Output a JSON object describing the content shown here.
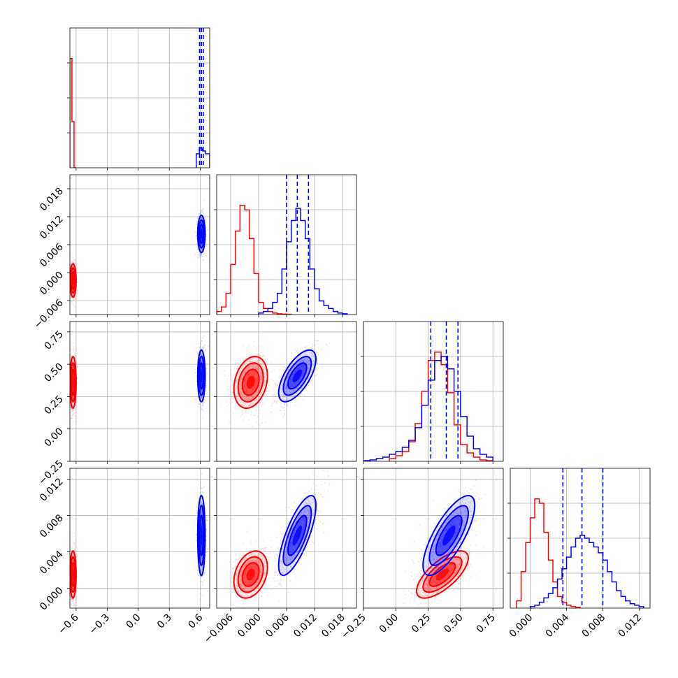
{
  "chart_data": {
    "type": "corner",
    "colors": {
      "series_a": "#ff0000",
      "series_b": "#0000ff"
    },
    "grid": true,
    "quantile_line_style": "dashed",
    "params": [
      {
        "range": [
          -0.66,
          0.69
        ],
        "ticks": [
          -0.6,
          -0.3,
          0.0,
          0.3,
          0.6
        ],
        "tick_labels": [
          "−0.6",
          "−0.3",
          "0.0",
          "0.3",
          "0.6"
        ]
      },
      {
        "range": [
          -0.009,
          0.021
        ],
        "ticks": [
          -0.006,
          0.0,
          0.006,
          0.012,
          0.018
        ],
        "tick_labels": [
          "−0.006",
          "0.000",
          "0.006",
          "0.012",
          "0.018"
        ]
      },
      {
        "range": [
          -0.25,
          0.83
        ],
        "ticks": [
          -0.25,
          0.0,
          0.25,
          0.5,
          0.75
        ],
        "tick_labels": [
          "−0.25",
          "0.00",
          "0.25",
          "0.50",
          "0.75"
        ]
      },
      {
        "range": [
          -0.0022,
          0.0132
        ],
        "ticks": [
          0.0,
          0.004,
          0.008,
          0.012
        ],
        "tick_labels": [
          "0.000",
          "0.004",
          "0.008",
          "0.012"
        ]
      }
    ],
    "series": [
      {
        "color": "#ff0000",
        "mean": [
          -0.63,
          -0.0017,
          0.36,
          0.0015
        ],
        "std": [
          0.015,
          0.0018,
          0.1,
          0.0013
        ],
        "corr": [
          [
            1,
            0,
            0,
            0
          ],
          [
            0,
            1,
            0.25,
            0.3
          ],
          [
            0,
            0.25,
            1,
            0.7
          ],
          [
            0,
            0.3,
            0.7,
            1
          ]
        ],
        "histograms": [
          {
            "bin_edges": [
              -0.66,
              -0.64,
              -0.62,
              -0.6
            ],
            "counts": [
              0.78,
              0.33,
              0
            ]
          },
          {
            "bin_edges": [
              -0.009,
              -0.008,
              -0.007,
              -0.006,
              -0.005,
              -0.004,
              -0.003,
              -0.002,
              -0.001,
              0.0,
              0.001,
              0.002,
              0.003,
              0.004,
              0.005,
              0.006,
              0.007
            ],
            "counts": [
              0.02,
              0.05,
              0.14,
              0.33,
              0.55,
              0.72,
              0.69,
              0.5,
              0.27,
              0.08,
              0.04,
              0.02,
              0.01,
              0.005,
              0.003,
              0.002
            ]
          },
          {
            "bin_edges": [
              -0.05,
              0.0,
              0.05,
              0.1,
              0.15,
              0.2,
              0.25,
              0.3,
              0.35,
              0.4,
              0.45,
              0.5,
              0.55,
              0.6,
              0.65,
              0.7,
              0.75
            ],
            "counts": [
              0.02,
              0.04,
              0.07,
              0.14,
              0.27,
              0.5,
              0.72,
              0.78,
              0.69,
              0.49,
              0.26,
              0.12,
              0.06,
              0.03,
              0.01,
              0.005
            ]
          },
          {
            "bin_edges": [
              -0.0015,
              -0.001,
              -0.0005,
              0.0,
              0.0005,
              0.001,
              0.0015,
              0.002,
              0.0025,
              0.003,
              0.0035,
              0.004,
              0.0045,
              0.005,
              0.0055
            ],
            "counts": [
              0.05,
              0.25,
              0.45,
              0.62,
              0.75,
              0.72,
              0.52,
              0.33,
              0.18,
              0.08,
              0.04,
              0.02,
              0.01,
              0.005
            ]
          }
        ]
      },
      {
        "color": "#0000ff",
        "mean": [
          0.61,
          0.0083,
          0.41,
          0.0058
        ],
        "std": [
          0.018,
          0.002,
          0.1,
          0.0022
        ],
        "corr": [
          [
            1,
            0,
            0,
            0
          ],
          [
            0,
            1,
            0.65,
            0.75
          ],
          [
            0,
            0.65,
            1,
            0.75
          ],
          [
            0,
            0.75,
            0.75,
            1
          ]
        ],
        "quantiles": [
          [
            0.592,
            0.61,
            0.628
          ],
          [
            0.006,
            0.0083,
            0.0107
          ],
          [
            0.27,
            0.39,
            0.48
          ],
          [
            0.0036,
            0.0057,
            0.008
          ]
        ],
        "histograms": [
          {
            "bin_edges": [
              0.56,
              0.59,
              0.62,
              0.65,
              0.69
            ],
            "counts": [
              0.1,
              0.14,
              0.12,
              0.1
            ]
          },
          {
            "bin_edges": [
              0.0,
              0.001,
              0.002,
              0.003,
              0.004,
              0.005,
              0.006,
              0.007,
              0.008,
              0.009,
              0.01,
              0.011,
              0.012,
              0.013,
              0.014,
              0.015,
              0.016,
              0.017,
              0.018,
              0.019
            ],
            "counts": [
              0.01,
              0.02,
              0.04,
              0.08,
              0.14,
              0.3,
              0.48,
              0.62,
              0.7,
              0.62,
              0.5,
              0.3,
              0.17,
              0.09,
              0.06,
              0.04,
              0.02,
              0.01,
              0.005
            ]
          },
          {
            "bin_edges": [
              -0.25,
              -0.2,
              -0.15,
              -0.1,
              -0.05,
              0.0,
              0.05,
              0.1,
              0.15,
              0.2,
              0.25,
              0.3,
              0.35,
              0.4,
              0.45,
              0.5,
              0.55,
              0.6,
              0.65,
              0.7,
              0.75
            ],
            "counts": [
              0.005,
              0.01,
              0.02,
              0.03,
              0.05,
              0.07,
              0.1,
              0.15,
              0.24,
              0.4,
              0.58,
              0.72,
              0.75,
              0.66,
              0.5,
              0.32,
              0.18,
              0.09,
              0.05,
              0.03
            ]
          },
          {
            "bin_edges": [
              0.0,
              0.0005,
              0.001,
              0.0015,
              0.002,
              0.0025,
              0.003,
              0.0035,
              0.004,
              0.0045,
              0.005,
              0.0055,
              0.006,
              0.0065,
              0.007,
              0.0075,
              0.008,
              0.0085,
              0.009,
              0.0095,
              0.01,
              0.0105,
              0.011,
              0.0115,
              0.012,
              0.0125
            ],
            "counts": [
              0.01,
              0.02,
              0.04,
              0.07,
              0.1,
              0.14,
              0.2,
              0.27,
              0.35,
              0.42,
              0.48,
              0.5,
              0.48,
              0.45,
              0.42,
              0.38,
              0.33,
              0.25,
              0.18,
              0.12,
              0.08,
              0.05,
              0.03,
              0.02,
              0.01
            ]
          }
        ]
      }
    ]
  }
}
